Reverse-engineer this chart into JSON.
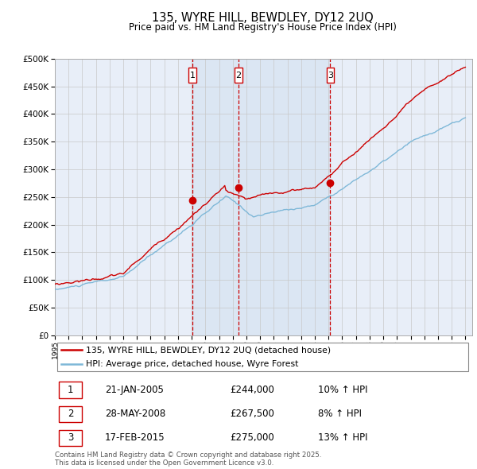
{
  "title": "135, WYRE HILL, BEWDLEY, DY12 2UQ",
  "subtitle": "Price paid vs. HM Land Registry's House Price Index (HPI)",
  "legend_line1": "135, WYRE HILL, BEWDLEY, DY12 2UQ (detached house)",
  "legend_line2": "HPI: Average price, detached house, Wyre Forest",
  "annotation_1_label": "1",
  "annotation_1_date": "21-JAN-2005",
  "annotation_1_price": "£244,000",
  "annotation_1_hpi": "10% ↑ HPI",
  "annotation_2_label": "2",
  "annotation_2_date": "28-MAY-2008",
  "annotation_2_price": "£267,500",
  "annotation_2_hpi": "8% ↑ HPI",
  "annotation_3_label": "3",
  "annotation_3_date": "17-FEB-2015",
  "annotation_3_price": "£275,000",
  "annotation_3_hpi": "13% ↑ HPI",
  "footer": "Contains HM Land Registry data © Crown copyright and database right 2025.\nThis data is licensed under the Open Government Licence v3.0.",
  "hpi_color": "#7fb8d8",
  "price_color": "#cc0000",
  "vline_color": "#cc0000",
  "plot_bg": "#e8eef8",
  "ylim_max": 500000,
  "sale_dates": [
    2005.06,
    2008.41,
    2015.12
  ],
  "sale_prices": [
    244000,
    267500,
    275000
  ]
}
